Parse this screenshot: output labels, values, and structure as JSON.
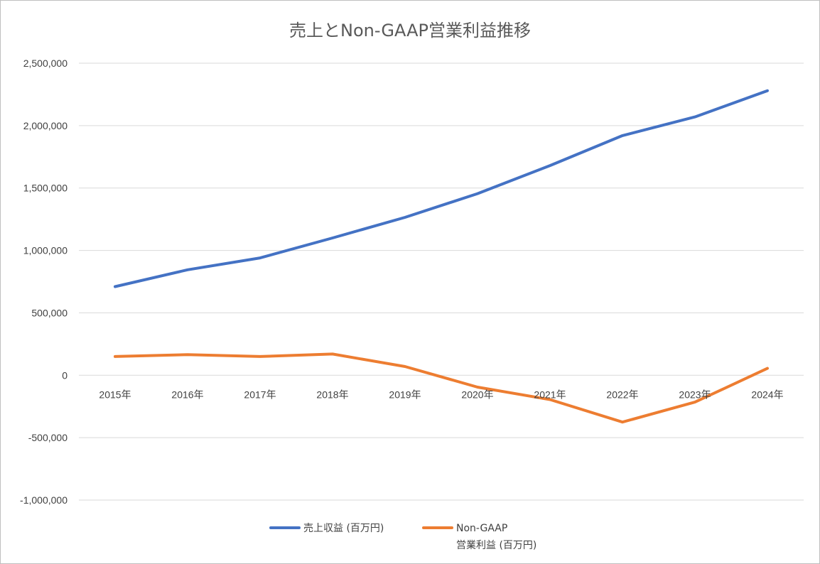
{
  "chart_data": {
    "type": "line",
    "title": "売上とNon-GAAP営業利益推移",
    "xlabel": "",
    "ylabel": "",
    "categories": [
      "2015年",
      "2016年",
      "2017年",
      "2018年",
      "2019年",
      "2020年",
      "2021年",
      "2022年",
      "2023年",
      "2024年"
    ],
    "ylim": [
      -1000000,
      2500000
    ],
    "yticks": [
      2500000,
      2000000,
      1500000,
      1000000,
      500000,
      0,
      -500000,
      -1000000
    ],
    "ytick_labels": [
      "2,500,000",
      "2,000,000",
      "1,500,000",
      "1,000,000",
      "500,000",
      "0",
      "-500,000",
      "-1,000,000"
    ],
    "grid": true,
    "legend_position": "bottom",
    "series": [
      {
        "name": "売上収益 (百万円)",
        "legend_lines": [
          "売上収益 (百万円)"
        ],
        "color": "#4472C4",
        "values": [
          710000,
          845000,
          940000,
          1100000,
          1265000,
          1455000,
          1680000,
          1920000,
          2070000,
          2280000
        ]
      },
      {
        "name": "Non-GAAP 営業利益 (百万円)",
        "legend_lines": [
          "Non-GAAP",
          "営業利益 (百万円)"
        ],
        "color": "#ED7D31",
        "values": [
          150000,
          165000,
          150000,
          170000,
          70000,
          -95000,
          -195000,
          -375000,
          -215000,
          55000
        ]
      }
    ]
  }
}
